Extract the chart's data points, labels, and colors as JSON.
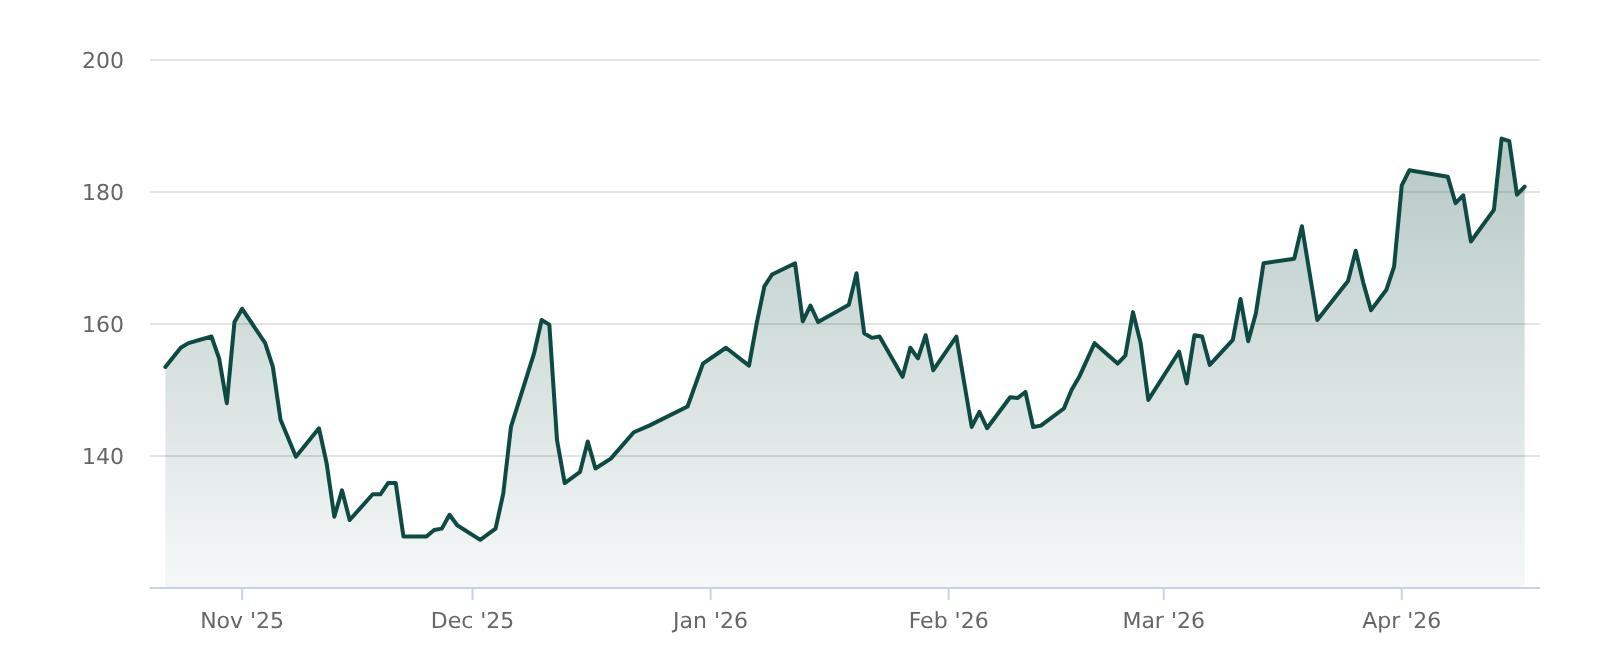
{
  "chart_data": {
    "type": "area",
    "xlim": [
      "2025-10-20",
      "2026-04-19"
    ],
    "ylim": [
      120,
      200
    ],
    "yticks": [
      140,
      160,
      180,
      200
    ],
    "xticks": [
      {
        "value": "2025-11-01",
        "label": "Nov '25"
      },
      {
        "value": "2025-12-01",
        "label": "Dec '25"
      },
      {
        "value": "2026-01-01",
        "label": "Jan '26"
      },
      {
        "value": "2026-02-01",
        "label": "Feb '26"
      },
      {
        "value": "2026-03-01",
        "label": "Mar '26"
      },
      {
        "value": "2026-04-01",
        "label": "Apr '26"
      }
    ],
    "grid": "y",
    "series": [
      {
        "color": "#0e4a44",
        "x": [
          "2025-10-22",
          "2025-10-24",
          "2025-10-25",
          "2025-10-28",
          "2025-10-29",
          "2025-10-30",
          "2025-10-31",
          "2025-11-01",
          "2025-11-04",
          "2025-11-05",
          "2025-11-06",
          "2025-11-08",
          "2025-11-11",
          "2025-11-12",
          "2025-11-13",
          "2025-11-14",
          "2025-11-15",
          "2025-11-18",
          "2025-11-19",
          "2025-11-20",
          "2025-11-21",
          "2025-11-22",
          "2025-11-25",
          "2025-11-26",
          "2025-11-27",
          "2025-11-28",
          "2025-11-29",
          "2025-12-02",
          "2025-12-04",
          "2025-12-05",
          "2025-12-06",
          "2025-12-09",
          "2025-12-10",
          "2025-12-11",
          "2025-12-12",
          "2025-12-13",
          "2025-12-15",
          "2025-12-16",
          "2025-12-17",
          "2025-12-19",
          "2025-12-22",
          "2025-12-24",
          "2025-12-29",
          "2025-12-31",
          "2026-01-03",
          "2026-01-06",
          "2026-01-07",
          "2026-01-08",
          "2026-01-09",
          "2026-01-12",
          "2026-01-13",
          "2026-01-14",
          "2026-01-15",
          "2026-01-19",
          "2026-01-20",
          "2026-01-21",
          "2026-01-22",
          "2026-01-23",
          "2026-01-26",
          "2026-01-27",
          "2026-01-28",
          "2026-01-29",
          "2026-01-30",
          "2026-02-02",
          "2026-02-04",
          "2026-02-05",
          "2026-02-06",
          "2026-02-09",
          "2026-02-10",
          "2026-02-11",
          "2026-02-12",
          "2026-02-13",
          "2026-02-16",
          "2026-02-17",
          "2026-02-18",
          "2026-02-20",
          "2026-02-23",
          "2026-02-24",
          "2026-02-25",
          "2026-02-26",
          "2026-02-27",
          "2026-03-03",
          "2026-03-04",
          "2026-03-05",
          "2026-03-06",
          "2026-03-07",
          "2026-03-10",
          "2026-03-11",
          "2026-03-12",
          "2026-03-13",
          "2026-03-14",
          "2026-03-18",
          "2026-03-19",
          "2026-03-21",
          "2026-03-25",
          "2026-03-26",
          "2026-03-27",
          "2026-03-28",
          "2026-03-30",
          "2026-03-31",
          "2026-04-01",
          "2026-04-02",
          "2026-04-07",
          "2026-04-08",
          "2026-04-09",
          "2026-04-10",
          "2026-04-13",
          "2026-04-14",
          "2026-04-15",
          "2026-04-16",
          "2026-04-17"
        ],
        "values": [
          153.5,
          156.4,
          157.1,
          158.1,
          154.8,
          148.0,
          160.3,
          162.3,
          157.1,
          153.5,
          145.5,
          139.9,
          144.2,
          138.9,
          130.8,
          134.8,
          130.3,
          134.2,
          134.2,
          135.9,
          135.9,
          127.8,
          127.8,
          128.8,
          129.0,
          131.1,
          129.5,
          127.3,
          129.0,
          134.3,
          144.4,
          155.5,
          160.6,
          159.9,
          142.4,
          135.9,
          137.6,
          142.2,
          138.1,
          139.6,
          143.6,
          144.6,
          147.5,
          154.0,
          156.4,
          153.7,
          160.1,
          165.7,
          167.5,
          169.2,
          160.4,
          162.8,
          160.3,
          162.9,
          167.7,
          158.6,
          157.9,
          158.1,
          152.0,
          156.4,
          154.8,
          158.3,
          153.0,
          158.1,
          144.4,
          146.7,
          144.2,
          148.9,
          148.8,
          149.7,
          144.4,
          144.6,
          147.2,
          150.0,
          152.0,
          157.1,
          154.0,
          155.2,
          161.8,
          157.1,
          148.5,
          155.8,
          151.0,
          158.3,
          158.1,
          153.8,
          157.6,
          163.8,
          157.4,
          161.6,
          169.2,
          169.9,
          174.8,
          160.6,
          166.5,
          171.1,
          166.2,
          162.1,
          165.2,
          168.7,
          181.0,
          183.3,
          182.3,
          178.3,
          179.5,
          172.5,
          177.3,
          188.1,
          187.7,
          179.6,
          180.8
        ]
      }
    ]
  }
}
